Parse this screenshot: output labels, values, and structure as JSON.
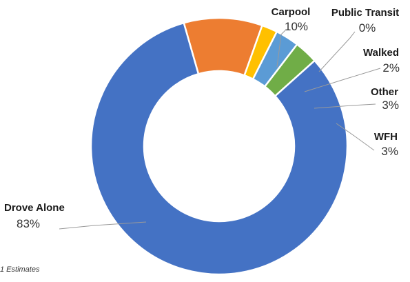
{
  "chart_data": {
    "type": "pie",
    "variant": "donut",
    "title": "",
    "slices": [
      {
        "name": "Carpool",
        "value": 10,
        "label": "10%",
        "color": "#ED7D31"
      },
      {
        "name": "Public Transit",
        "value": 0,
        "label": "0%",
        "color": "#FFFFFF"
      },
      {
        "name": "Walked",
        "value": 2,
        "label": "2%",
        "color": "#FFC000"
      },
      {
        "name": "Other",
        "value": 3,
        "label": "3%",
        "color": "#5B9BD5"
      },
      {
        "name": "WFH",
        "value": 3,
        "label": "3%",
        "color": "#70AD47"
      },
      {
        "name": "Drove Alone",
        "value": 83,
        "label": "83%",
        "color": "#4472C4"
      }
    ],
    "footnote": "1 Estimates"
  }
}
